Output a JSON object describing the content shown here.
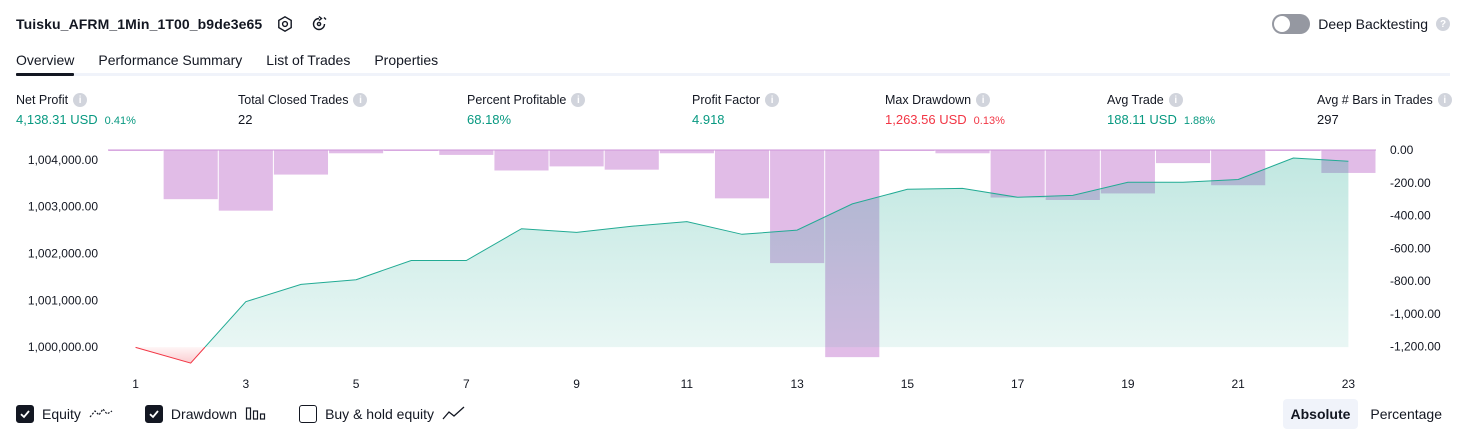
{
  "header": {
    "title": "Tuisku_AFRM_1Min_1T00_b9de3e65",
    "deep_backtesting_label": "Deep Backtesting",
    "deep_backtesting_enabled": false
  },
  "tabs": [
    {
      "label": "Overview",
      "active": true
    },
    {
      "label": "Performance Summary",
      "active": false
    },
    {
      "label": "List of Trades",
      "active": false
    },
    {
      "label": "Properties",
      "active": false
    }
  ],
  "metrics": [
    {
      "label": "Net Profit",
      "value": "4,138.31 USD",
      "pct": "0.41%",
      "tone": "pos"
    },
    {
      "label": "Total Closed Trades",
      "value": "22",
      "pct": "",
      "tone": "neutral"
    },
    {
      "label": "Percent Profitable",
      "value": "68.18%",
      "pct": "",
      "tone": "pos"
    },
    {
      "label": "Profit Factor",
      "value": "4.918",
      "pct": "",
      "tone": "pos"
    },
    {
      "label": "Max Drawdown",
      "value": "1,263.56 USD",
      "pct": "0.13%",
      "tone": "neg"
    },
    {
      "label": "Avg Trade",
      "value": "188.11 USD",
      "pct": "1.88%",
      "tone": "pos"
    },
    {
      "label": "Avg # Bars in Trades",
      "value": "297",
      "pct": "",
      "tone": "neutral"
    }
  ],
  "legend": {
    "equity_label": "Equity",
    "equity_checked": true,
    "drawdown_label": "Drawdown",
    "drawdown_checked": true,
    "buyhold_label": "Buy & hold equity",
    "buyhold_checked": false
  },
  "scale": {
    "absolute_label": "Absolute",
    "percentage_label": "Percentage",
    "selected": "Absolute"
  },
  "colors": {
    "positive": "#089981",
    "negative": "#f23645",
    "drawdown": "#ce93d8",
    "equity_line": "#22ab94",
    "equity_fill": "#22ab94"
  },
  "chart_data": {
    "type": "line",
    "x": [
      1,
      2,
      3,
      4,
      5,
      6,
      7,
      8,
      9,
      10,
      11,
      12,
      13,
      14,
      15,
      16,
      17,
      18,
      19,
      20,
      21,
      22,
      23
    ],
    "x_tick_labels": [
      "1",
      "3",
      "5",
      "7",
      "9",
      "11",
      "13",
      "15",
      "17",
      "19",
      "21",
      "23"
    ],
    "series": [
      {
        "axis": "left",
        "values": [
          999995,
          999660,
          1000970,
          1001340,
          1001440,
          1001850,
          1001850,
          1002530,
          1002450,
          1002580,
          1002680,
          1002410,
          1002500,
          1003060,
          1003370,
          1003390,
          1003200,
          1003240,
          1003520,
          1003520,
          1003580,
          1004040,
          1003970
        ]
      },
      {
        "axis": "right",
        "type": "bar",
        "values": [
          -5,
          -300,
          -370,
          -150,
          -20,
          -5,
          -30,
          -125,
          -100,
          -120,
          -20,
          -295,
          -690,
          -1263.56,
          -5,
          -20,
          -290,
          -305,
          -265,
          -80,
          -215,
          -5,
          -140
        ]
      }
    ],
    "y_left_ticks": [
      "1,000,000.00",
      "1,001,000.00",
      "1,002,000.00",
      "1,003,000.00",
      "1,004,000.00"
    ],
    "y_left_range": [
      999640,
      1004210
    ],
    "y_right_ticks": [
      "0.00",
      "-200.00",
      "-400.00",
      "-600.00",
      "-800.00",
      "-1,000.00",
      "-1,200.00"
    ],
    "y_right_range": [
      -1275,
      0
    ],
    "baseline": 1000000,
    "grid": false
  }
}
